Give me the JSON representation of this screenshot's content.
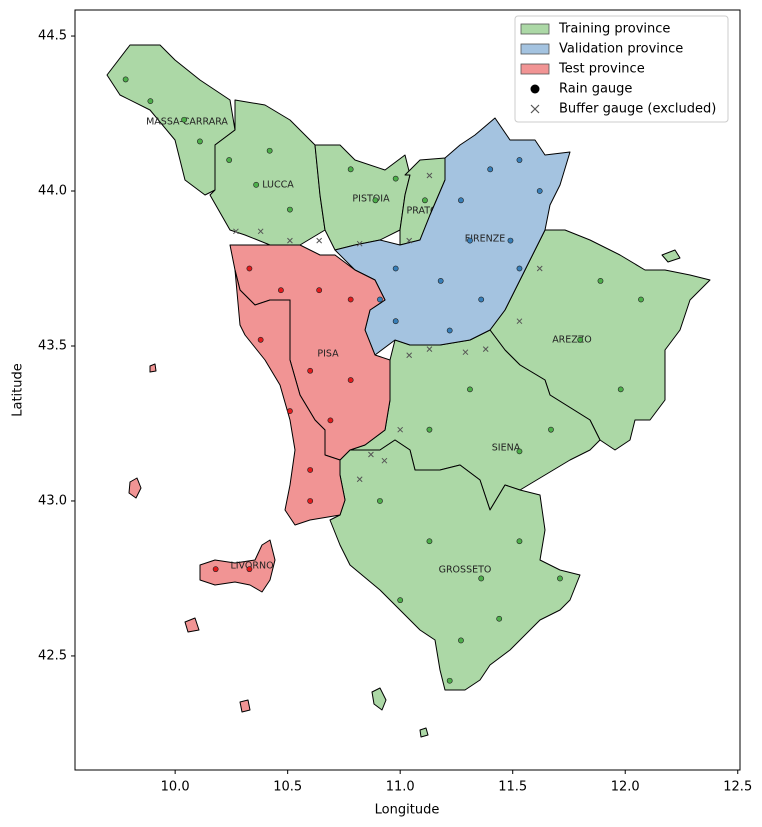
{
  "chart_data": {
    "type": "map",
    "xlabel": "Longitude",
    "ylabel": "Latitude",
    "xlim": [
      9.555,
      12.51
    ],
    "ylim": [
      42.132,
      44.584
    ],
    "xticks": [
      {
        "value": 10,
        "label": "10.0"
      },
      10.5,
      {
        "value": 11,
        "label": "11.0"
      },
      11.5,
      {
        "value": 12,
        "label": "12.0"
      },
      12.5
    ],
    "yticks": [
      42.5,
      {
        "value": 43,
        "label": "43.0"
      },
      43.5,
      {
        "value": 44,
        "label": "44.0"
      },
      44.5
    ],
    "legend": "upper right",
    "series": [
      {
        "name": "Training province",
        "color": "#acd8a6",
        "point_color": "#4daf4a",
        "provinces": [
          "MASSA-CARRARA",
          "LUCCA",
          "PISTOIA",
          "PRATO",
          "AREZZO",
          "SIENA",
          "GROSSETO"
        ],
        "x": [
          9.78,
          9.89,
          10.04,
          10.11,
          10.24,
          10.36,
          10.51,
          10.42,
          10.78,
          10.89,
          10.98,
          11.11,
          11.89,
          12.07,
          11.8,
          11.98,
          11.67,
          11.31,
          11.13,
          11.53,
          10.91,
          11.13,
          11.36,
          11.53,
          11.27,
          11.0,
          11.71,
          11.44,
          11.22
        ],
        "y": [
          44.36,
          44.29,
          44.23,
          44.16,
          44.1,
          44.02,
          43.94,
          44.13,
          44.07,
          43.97,
          44.04,
          43.97,
          43.71,
          43.65,
          43.52,
          43.36,
          43.23,
          43.36,
          43.23,
          43.16,
          43.0,
          42.87,
          42.75,
          42.87,
          42.55,
          42.68,
          42.75,
          42.62,
          42.42
        ]
      },
      {
        "name": "Validation province",
        "color": "#a4c3e0",
        "point_color": "#377eb8",
        "provinces": [
          "FIRENZE"
        ],
        "x": [
          11.27,
          11.4,
          11.53,
          11.62,
          11.31,
          11.49,
          10.98,
          11.18,
          11.36,
          11.53,
          10.98,
          11.22,
          10.91
        ],
        "y": [
          43.97,
          44.07,
          44.1,
          44.0,
          43.84,
          43.84,
          43.75,
          43.71,
          43.65,
          43.75,
          43.58,
          43.55,
          43.65
        ]
      },
      {
        "name": "Test province",
        "color": "#f19494",
        "point_color": "#e41a1c",
        "provinces": [
          "PISA",
          "LIVORNO"
        ],
        "x": [
          10.33,
          10.47,
          10.64,
          10.78,
          10.38,
          10.6,
          10.78,
          10.51,
          10.69,
          10.6,
          10.6,
          10.18,
          10.33
        ],
        "y": [
          43.75,
          43.68,
          43.68,
          43.65,
          43.52,
          43.42,
          43.39,
          43.29,
          43.26,
          43.1,
          43.0,
          42.78,
          42.78
        ]
      }
    ],
    "rain_gauge_label": "Rain gauge",
    "buffer": {
      "name": "Buffer gauge (excluded)",
      "color": "#555555",
      "x": [
        10.27,
        10.38,
        10.51,
        10.64,
        10.82,
        11.04,
        11.13,
        11.04,
        11.13,
        11.29,
        11.38,
        11.53,
        11.62,
        10.87,
        10.93,
        10.82,
        11.0
      ],
      "y": [
        43.87,
        43.87,
        43.84,
        43.84,
        43.83,
        43.84,
        44.05,
        43.47,
        43.49,
        43.48,
        43.49,
        43.58,
        43.75,
        43.15,
        43.13,
        43.07,
        43.23
      ]
    }
  }
}
